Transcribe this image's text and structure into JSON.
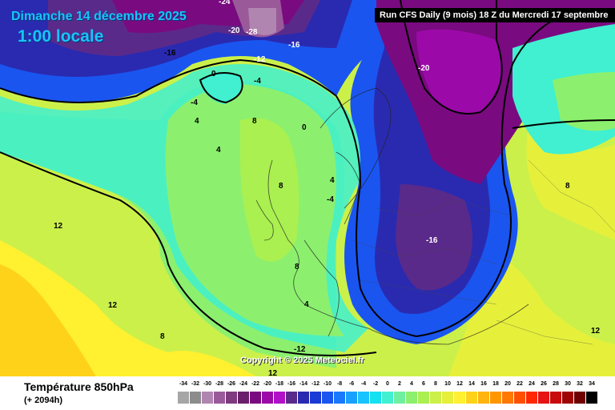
{
  "header": {
    "date": "Dimanche 14 décembre 2025",
    "time": "1:00 locale",
    "run_info": "Run CFS Daily (9 mois) 18 Z du Mercredi 17 septembre"
  },
  "copyright": "Copyright © 2025 Meteociel.fr",
  "footer": {
    "parameter": "Température 850hPa",
    "lead": "(+ 2094h)"
  },
  "legend": {
    "ticks": [
      "-34",
      "-32",
      "-30",
      "-28",
      "-26",
      "-24",
      "-22",
      "-20",
      "-18",
      "-16",
      "-14",
      "-12",
      "-10",
      "-8",
      "-6",
      "-4",
      "-2",
      "0",
      "2",
      "4",
      "6",
      "8",
      "10",
      "12",
      "14",
      "16",
      "18",
      "20",
      "22",
      "24",
      "26",
      "28",
      "30",
      "32",
      "34"
    ],
    "colors": [
      "#a6a6a6",
      "#8c8c8c",
      "#b085b0",
      "#9a5a9a",
      "#7e3a7e",
      "#6a1f6a",
      "#7a0a80",
      "#9b0aa8",
      "#b20fc8",
      "#5a2a8a",
      "#2a2ab0",
      "#1a3ad6",
      "#1a55f0",
      "#1a78ff",
      "#1aa0ff",
      "#19c3ff",
      "#15e1f0",
      "#40f0d0",
      "#6ef0a0",
      "#8cf06e",
      "#aaf050",
      "#ccf04a",
      "#e6f03a",
      "#fff030",
      "#ffd21a",
      "#ffb40f",
      "#ff9600",
      "#ff7800",
      "#ff5000",
      "#ff2800",
      "#e61414",
      "#c80a0a",
      "#a00505",
      "#700000",
      "#000000"
    ]
  },
  "map_labels": [
    {
      "text": "-16"
    },
    {
      "text": "-20"
    },
    {
      "text": "-28"
    },
    {
      "text": "-24"
    },
    {
      "text": "-12"
    },
    {
      "text": "-16"
    },
    {
      "text": "-20"
    },
    {
      "text": "0"
    },
    {
      "text": "-4"
    },
    {
      "text": "4"
    },
    {
      "text": "8"
    },
    {
      "text": "0"
    },
    {
      "text": "4"
    },
    {
      "text": "-4"
    },
    {
      "text": "8"
    },
    {
      "text": "4"
    },
    {
      "text": "-16"
    },
    {
      "text": "12"
    },
    {
      "text": "12"
    },
    {
      "text": "8"
    },
    {
      "text": "8"
    },
    {
      "text": "4"
    },
    {
      "text": "-12"
    },
    {
      "text": "12"
    },
    {
      "text": "12"
    },
    {
      "text": "8"
    },
    {
      "text": "-4"
    }
  ]
}
